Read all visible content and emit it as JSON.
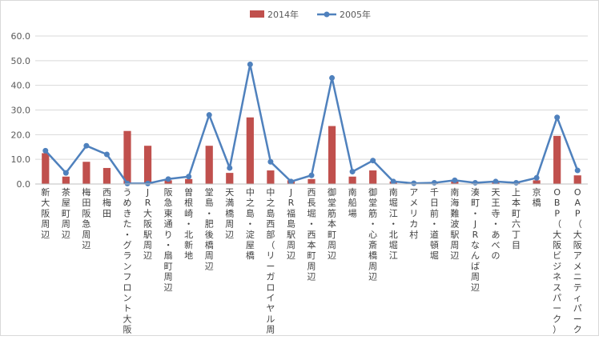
{
  "chart_data": {
    "type": "bar",
    "title": "",
    "xlabel": "",
    "ylabel": "",
    "ylim": [
      0,
      60
    ],
    "yticks": [
      "0.0",
      "10.0",
      "20.0",
      "30.0",
      "40.0",
      "50.0",
      "60.0"
    ],
    "grid": true,
    "legend_position": "top-center",
    "categories": [
      "新大阪周辺",
      "茶屋町周辺",
      "梅田阪急周辺",
      "西梅田",
      "うめきた・グランフロント大阪",
      "JR大阪駅周辺",
      "阪急東通り・扇町周辺",
      "曽根崎・北新地",
      "堂島・肥後橋周辺",
      "天満橋周辺",
      "中之島・淀屋橋",
      "中之島西部（リーガロイヤル周辺）",
      "JR福島駅周辺",
      "西長堀・西本町周辺",
      "御堂筋本町周辺",
      "南船場",
      "御堂筋・心斎橋周辺",
      "南堀江・北堀江",
      "アメリカ村",
      "千日前・道頓堀",
      "南海難波駅周辺",
      "湊町・JRなんば周辺",
      "天王寺・あべの",
      "上本町六丁目",
      "京橋",
      "OBP（大阪ビジネスパーク）",
      "OAP（大阪アメニティパーク）"
    ],
    "series": [
      {
        "name": "2014年",
        "kind": "bar",
        "color": "#C0504D",
        "values": [
          12.5,
          3.0,
          9.0,
          6.5,
          21.5,
          15.5,
          1.5,
          2.0,
          15.5,
          4.5,
          27.0,
          5.5,
          1.5,
          2.0,
          23.5,
          3.0,
          5.5,
          1.0,
          0.2,
          0.5,
          1.0,
          1.0,
          1.0,
          0.5,
          1.5,
          19.5,
          3.5
        ]
      },
      {
        "name": "2005年",
        "kind": "line",
        "color": "#4F81BD",
        "values": [
          13.5,
          4.5,
          15.5,
          12.0,
          0.2,
          0.2,
          2.0,
          3.0,
          28.0,
          6.5,
          48.5,
          9.0,
          1.0,
          3.5,
          43.0,
          5.0,
          9.5,
          1.0,
          0.3,
          0.5,
          1.5,
          0.5,
          1.0,
          0.5,
          2.5,
          27.0,
          5.5
        ]
      }
    ]
  }
}
